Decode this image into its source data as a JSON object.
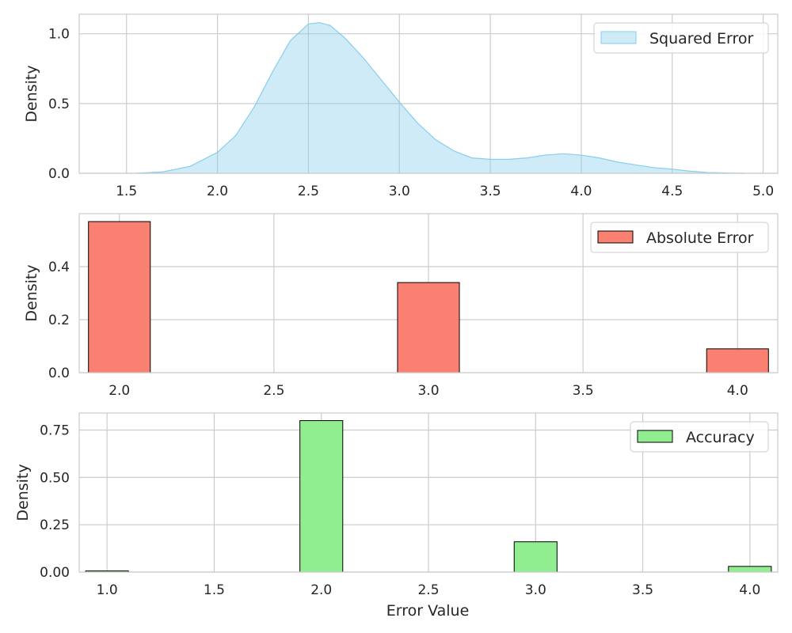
{
  "chart_data": [
    {
      "type": "area",
      "panel": "top",
      "ylabel": "Density",
      "xlabel": "",
      "xlim": [
        1.24,
        5.08
      ],
      "ylim": [
        0,
        1.14
      ],
      "xticks": [
        "1.5",
        "2.0",
        "2.5",
        "3.0",
        "3.5",
        "4.0",
        "4.5",
        "5.0"
      ],
      "yticks": [
        "0.0",
        "0.5",
        "1.0"
      ],
      "grid": true,
      "legend_position": "top-right",
      "series": [
        {
          "name": "Squared Error",
          "color": "#87ceeb",
          "x": [
            1.55,
            1.7,
            1.85,
            2.0,
            2.1,
            2.2,
            2.3,
            2.4,
            2.5,
            2.56,
            2.62,
            2.7,
            2.8,
            2.9,
            3.0,
            3.1,
            3.2,
            3.3,
            3.4,
            3.5,
            3.6,
            3.7,
            3.8,
            3.9,
            4.0,
            4.1,
            4.2,
            4.3,
            4.4,
            4.5,
            4.6,
            4.7,
            4.8,
            4.9
          ],
          "y": [
            0.0,
            0.01,
            0.05,
            0.15,
            0.27,
            0.47,
            0.72,
            0.95,
            1.07,
            1.08,
            1.06,
            0.97,
            0.83,
            0.67,
            0.51,
            0.36,
            0.24,
            0.16,
            0.11,
            0.1,
            0.1,
            0.11,
            0.13,
            0.14,
            0.13,
            0.11,
            0.08,
            0.06,
            0.04,
            0.03,
            0.015,
            0.005,
            0.002,
            0.0
          ]
        }
      ]
    },
    {
      "type": "bar",
      "panel": "middle",
      "ylabel": "Density",
      "xlabel": "",
      "xlim": [
        1.87,
        4.13
      ],
      "ylim": [
        0,
        0.6
      ],
      "xticks": [
        "2.0",
        "2.5",
        "3.0",
        "3.5",
        "4.0"
      ],
      "yticks": [
        "0.0",
        "0.2",
        "0.4"
      ],
      "grid": true,
      "legend_position": "top-right",
      "bar_width": 0.2,
      "series": [
        {
          "name": "Absolute Error",
          "color": "#fa8072",
          "x": [
            2.0,
            3.0,
            4.0
          ],
          "values": [
            0.57,
            0.34,
            0.09
          ]
        }
      ]
    },
    {
      "type": "bar",
      "panel": "bottom",
      "ylabel": "Density",
      "xlabel": "Error Value",
      "xlim": [
        0.87,
        4.13
      ],
      "ylim": [
        0,
        0.84
      ],
      "xticks": [
        "1.0",
        "1.5",
        "2.0",
        "2.5",
        "3.0",
        "3.5",
        "4.0"
      ],
      "yticks": [
        "0.00",
        "0.25",
        "0.50",
        "0.75"
      ],
      "grid": true,
      "legend_position": "top-right",
      "bar_width": 0.2,
      "series": [
        {
          "name": "Accuracy",
          "color": "#90ee90",
          "x": [
            1.0,
            2.0,
            3.0,
            4.0
          ],
          "values": [
            0.006,
            0.8,
            0.16,
            0.03
          ]
        }
      ]
    }
  ]
}
